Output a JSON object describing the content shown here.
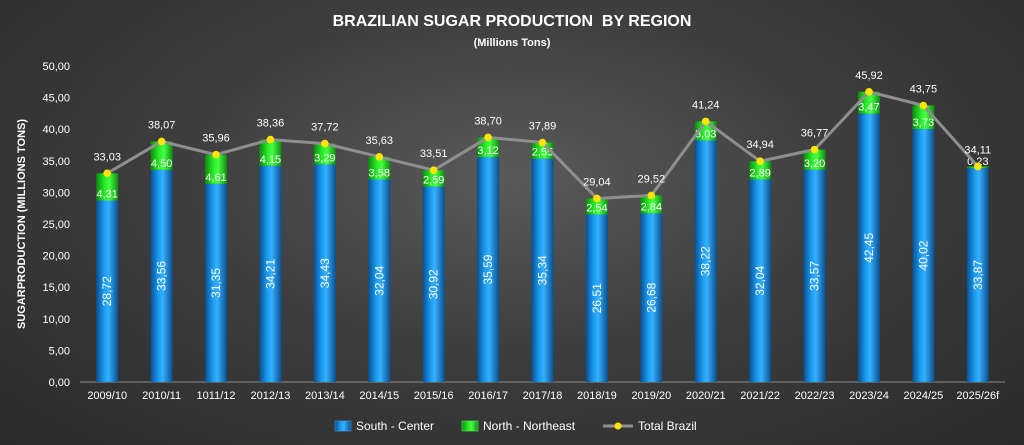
{
  "chart_data": {
    "type": "bar",
    "stacked": true,
    "title": "BRAZILIAN SUGAR PRODUCTION  BY REGION",
    "subtitle": "(Millions Tons)",
    "xlabel": "",
    "ylabel": "SUGARPRODUCTION (MILLIONS TONS)",
    "ylim": [
      0,
      50
    ],
    "yticks": [
      "0,00",
      "5,00",
      "10,00",
      "15,00",
      "20,00",
      "25,00",
      "30,00",
      "35,00",
      "40,00",
      "45,00",
      "50,00"
    ],
    "ytick_values": [
      0,
      5,
      10,
      15,
      20,
      25,
      30,
      35,
      40,
      45,
      50
    ],
    "legend_position": "bottom",
    "categories": [
      "2009/10",
      "2010/11",
      "1011/12",
      "2012/13",
      "2013/14",
      "2014/15",
      "2015/16",
      "2016/17",
      "2017/18",
      "2018/19",
      "2019/20",
      "2020/21",
      "2021/22",
      "2022/23",
      "2023/24",
      "2024/25",
      "2025/26f"
    ],
    "series": [
      {
        "name": "South - Center",
        "kind": "bar",
        "color": "#1a8fe0",
        "values": [
          28.72,
          33.56,
          31.35,
          34.21,
          34.43,
          32.04,
          30.92,
          35.59,
          35.34,
          26.51,
          26.68,
          38.22,
          32.04,
          33.57,
          42.45,
          40.02,
          33.87
        ],
        "labels": [
          "28,72",
          "33,56",
          "31,35",
          "34,21",
          "34,43",
          "32,04",
          "30,92",
          "35,59",
          "35,34",
          "26,51",
          "26,68",
          "38,22",
          "32,04",
          "33,57",
          "42,45",
          "40,02",
          "33,87"
        ]
      },
      {
        "name": "North - Northeast",
        "kind": "bar",
        "color": "#22dd22",
        "values": [
          4.31,
          4.5,
          4.61,
          4.15,
          3.29,
          3.58,
          2.59,
          3.12,
          2.55,
          2.54,
          2.84,
          3.03,
          2.89,
          3.2,
          3.47,
          3.73,
          0.23
        ],
        "labels": [
          "4,31",
          "4,50",
          "4,61",
          "4,15",
          "3,29",
          "3,58",
          "2,59",
          "3,12",
          "2,55",
          "2,54",
          "2,84",
          "3,03",
          "2,89",
          "3,20",
          "3,47",
          "3,73",
          "0,23"
        ]
      },
      {
        "name": "Total Brazil",
        "kind": "line",
        "color": "#8f8f8f",
        "marker_color": "#ffe600",
        "values": [
          33.03,
          38.07,
          35.96,
          38.36,
          37.72,
          35.63,
          33.51,
          38.7,
          37.89,
          29.04,
          29.52,
          41.24,
          34.94,
          36.77,
          45.92,
          43.75,
          34.11
        ],
        "labels": [
          "33,03",
          "38,07",
          "35,96",
          "38,36",
          "37,72",
          "35,63",
          "33,51",
          "38,70",
          "37,89",
          "29,04",
          "29,52",
          "41,24",
          "34,94",
          "36,77",
          "45,92",
          "43,75",
          "34,11"
        ]
      }
    ]
  }
}
